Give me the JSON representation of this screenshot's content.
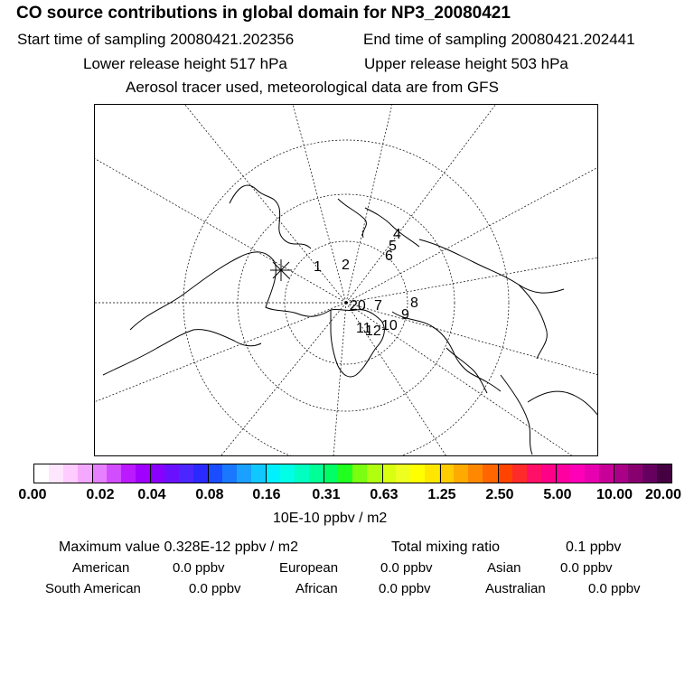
{
  "header": {
    "title": "CO  source contributions in global domain for NP3_20080421",
    "start_label": "Start time of sampling 20080421.202356",
    "end_label": "End time of sampling 20080421.202441",
    "lower_label": "Lower release height  517 hPa",
    "upper_label": "Upper release height  503 hPa",
    "tracer_label": "Aerosol tracer used, meteorological data are from GFS"
  },
  "map": {
    "projection": "north polar stereographic",
    "markers": [
      "1",
      "2",
      "4",
      "5",
      "6",
      "8",
      "9",
      "10",
      "20",
      "7",
      "11",
      "12"
    ],
    "release_marker": "release-point-x"
  },
  "colorbar": {
    "ticks": [
      "0.00",
      "0.02",
      "0.04",
      "0.08",
      "0.16",
      "0.31",
      "0.63",
      "1.25",
      "2.50",
      "5.00",
      "10.00",
      "20.00"
    ],
    "colors": [
      "#ffffff",
      "#ffe6ff",
      "#ffccff",
      "#f5a8ff",
      "#e680ff",
      "#d24dff",
      "#bb1aff",
      "#a000ff",
      "#8a00ff",
      "#6a10ff",
      "#4c26ff",
      "#2a2aff",
      "#1a4dff",
      "#1a78ff",
      "#1aa0ff",
      "#10c8ff",
      "#00f0ff",
      "#00ffe6",
      "#00ffc0",
      "#00ff96",
      "#00ff66",
      "#20ff20",
      "#7aff10",
      "#b0ff10",
      "#d8ff10",
      "#eeff20",
      "#ffff00",
      "#ffe600",
      "#ffcc00",
      "#ffaa00",
      "#ff8800",
      "#ff6600",
      "#ff4400",
      "#ff2a2a",
      "#ff1066",
      "#ff0088",
      "#ff00a0",
      "#ff00b8",
      "#e600b0",
      "#c80098",
      "#aa0088",
      "#880070",
      "#660060",
      "#440040"
    ],
    "units": "10E-10 ppbv / m2"
  },
  "stats": {
    "max_label": "Maximum value  0.328E-12 ppbv / m2",
    "total_label": "Total mixing ratio",
    "total_value": "0.1 ppbv",
    "regions": [
      {
        "name": "American",
        "value": "0.0 ppbv"
      },
      {
        "name": "European",
        "value": "0.0 ppbv"
      },
      {
        "name": "Asian",
        "value": "0.0 ppbv"
      },
      {
        "name": "South American",
        "value": "0.0 ppbv"
      },
      {
        "name": "African",
        "value": "0.0 ppbv"
      },
      {
        "name": "Australian",
        "value": "0.0 ppbv"
      }
    ]
  }
}
